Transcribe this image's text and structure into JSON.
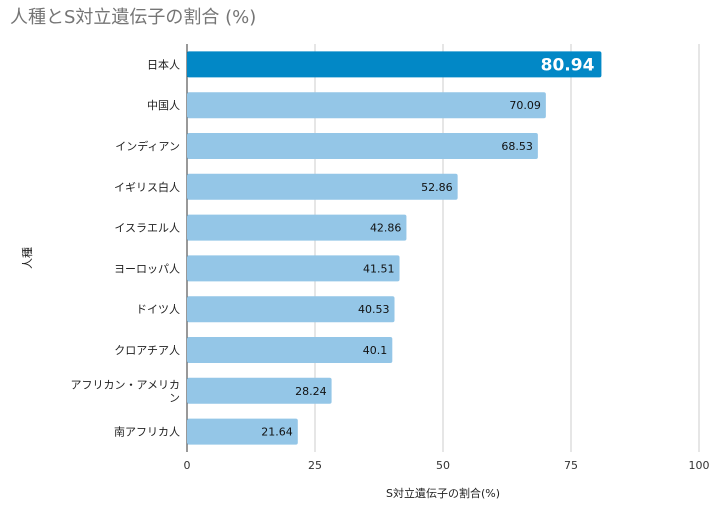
{
  "chart_data": {
    "type": "bar",
    "orientation": "horizontal",
    "title": "人種とS対立遺伝子の割合 (%)",
    "xlabel": "S対立遺伝子の割合(%)",
    "ylabel": "人種",
    "xlim": [
      0,
      100
    ],
    "xticks": [
      0,
      25,
      50,
      75,
      100
    ],
    "grid": true,
    "categories": [
      [
        "日本人"
      ],
      [
        "中国人"
      ],
      [
        "インディアン"
      ],
      [
        "イギリス白人"
      ],
      [
        "イスラエル人"
      ],
      [
        "ヨーロッパ人"
      ],
      [
        "ドイツ人"
      ],
      [
        "クロアチア人"
      ],
      [
        "アフリカン・アメリカ",
        "ン"
      ],
      [
        "南アフリカ人"
      ]
    ],
    "values": [
      80.94,
      70.09,
      68.53,
      52.86,
      42.86,
      41.51,
      40.53,
      40.1,
      28.24,
      21.64
    ],
    "highlight_index": 0,
    "colors": {
      "highlight": "#0288c6",
      "bar": "#94c6e7",
      "grid": "#cccccc",
      "axis": "#333333"
    }
  }
}
